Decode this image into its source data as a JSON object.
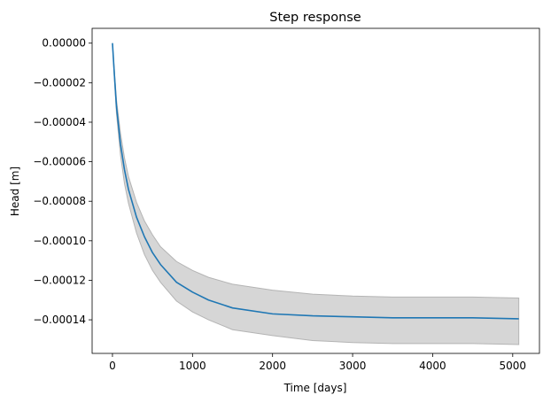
{
  "chart_data": {
    "type": "line",
    "title": "Step response",
    "xlabel": "Time [days]",
    "ylabel": "Head [m]",
    "xlim": [
      -254,
      5334
    ],
    "ylim": [
      -0.000157,
      7.5e-06
    ],
    "xticks": [
      0,
      1000,
      2000,
      3000,
      4000,
      5000
    ],
    "xtick_labels": [
      "0",
      "1000",
      "2000",
      "3000",
      "4000",
      "5000"
    ],
    "yticks": [
      0,
      -2e-05,
      -4e-05,
      -6e-05,
      -8e-05,
      -0.0001,
      -0.00012,
      -0.00014
    ],
    "ytick_labels": [
      "0.00000",
      "−0.00002",
      "−0.00004",
      "−0.00006",
      "−0.00008",
      "−0.00010",
      "−0.00012",
      "−0.00014"
    ],
    "grid": false,
    "colors": {
      "line": "#1f77b4",
      "band": "#d6d6d6",
      "band_edge": "#b4b4b4"
    },
    "series": [
      {
        "x": [
          0,
          25,
          50,
          100,
          150,
          200,
          300,
          400,
          500,
          600,
          800,
          1000,
          1200,
          1500,
          2000,
          2500,
          3000,
          3500,
          4000,
          4500,
          5076
        ],
        "values": [
          0,
          -1.65e-05,
          -3.2e-05,
          -5.1e-05,
          -6.4e-05,
          -7.4e-05,
          -8.8e-05,
          -9.8e-05,
          -0.000106,
          -0.000112,
          -0.000121,
          -0.000126,
          -0.00013,
          -0.000134,
          -0.000137,
          -0.000138,
          -0.0001385,
          -0.000139,
          -0.000139,
          -0.000139,
          -0.0001395
        ]
      }
    ],
    "band": {
      "x": [
        0,
        25,
        50,
        100,
        150,
        200,
        300,
        400,
        500,
        600,
        800,
        1000,
        1200,
        1500,
        2000,
        2500,
        3000,
        3500,
        4000,
        4500,
        5076
      ],
      "upper": [
        0,
        -1.45e-05,
        -2.85e-05,
        -4.55e-05,
        -5.8e-05,
        -6.75e-05,
        -8.05e-05,
        -9e-05,
        -9.7e-05,
        -0.000103,
        -0.0001105,
        -0.000115,
        -0.0001185,
        -0.000122,
        -0.000125,
        -0.000127,
        -0.000128,
        -0.0001285,
        -0.0001285,
        -0.0001285,
        -0.000129
      ],
      "lower": [
        0,
        -1.85e-05,
        -3.55e-05,
        -5.65e-05,
        -7.1e-05,
        -8.1e-05,
        -9.6e-05,
        -0.000107,
        -0.000115,
        -0.000121,
        -0.0001305,
        -0.000136,
        -0.00014,
        -0.000145,
        -0.000148,
        -0.0001505,
        -0.0001515,
        -0.000152,
        -0.000152,
        -0.000152,
        -0.0001525
      ]
    }
  }
}
